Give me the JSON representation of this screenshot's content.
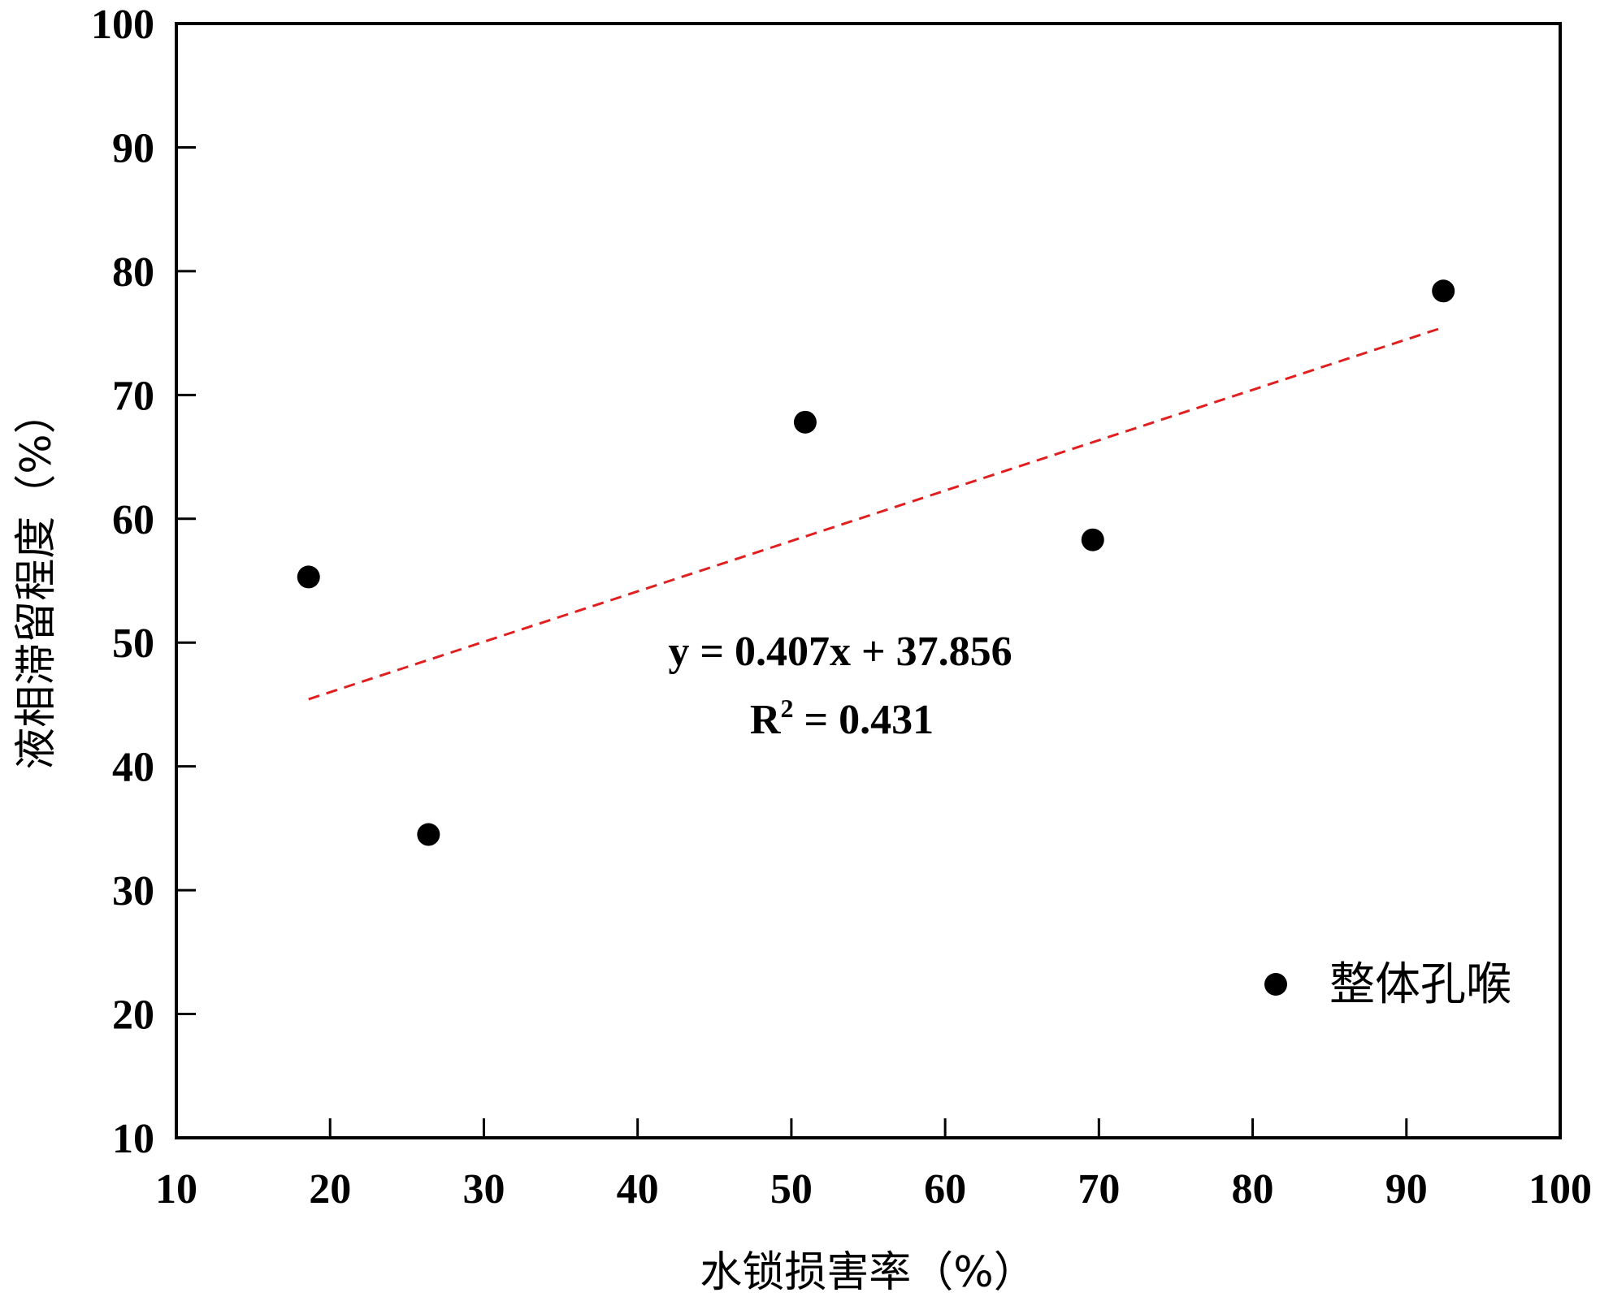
{
  "chart_data": {
    "type": "scatter",
    "xlabel": "水锁损害率（%）",
    "ylabel": "液相滞留程度（%）",
    "xlim": [
      10,
      100
    ],
    "ylim": [
      10,
      100
    ],
    "xticks": [
      10,
      20,
      30,
      40,
      50,
      60,
      70,
      80,
      90,
      100
    ],
    "yticks": [
      10,
      20,
      30,
      40,
      50,
      60,
      70,
      80,
      90,
      100
    ],
    "grid": false,
    "legend_position": "bottom-right",
    "series": [
      {
        "name": "整体孔喉",
        "color": "#000000",
        "marker": "circle",
        "points": [
          {
            "x": 18.6,
            "y": 55.3
          },
          {
            "x": 26.4,
            "y": 34.5
          },
          {
            "x": 50.9,
            "y": 67.8
          },
          {
            "x": 69.6,
            "y": 58.3
          },
          {
            "x": 92.4,
            "y": 78.4
          }
        ]
      }
    ],
    "trendline": {
      "color": "#e02020",
      "style": "dashed",
      "slope": 0.407,
      "intercept": 37.856,
      "x_range": [
        18.6,
        92.4
      ],
      "equation": "y = 0.407x + 37.856",
      "r2_label": "R",
      "r2_sup": "2",
      "r2_value": " = 0.431"
    }
  }
}
